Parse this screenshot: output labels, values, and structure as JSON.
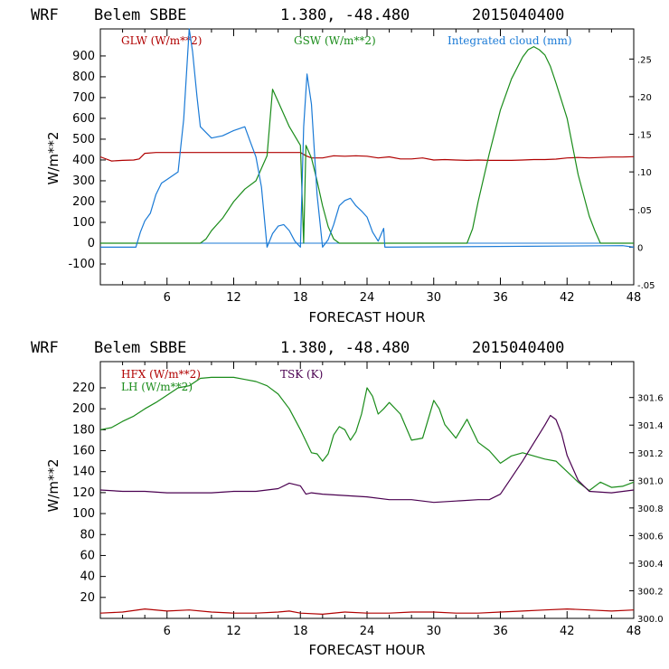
{
  "chart_data": [
    {
      "type": "line",
      "title": {
        "model": "WRF",
        "station": "Belem SBBE",
        "coords": "1.380, -48.480",
        "run": "2015040400"
      },
      "xlabel": "FORECAST HOUR",
      "ylabel": "W/m**2",
      "xlim": [
        0,
        48
      ],
      "ylim": [
        -200,
        1030
      ],
      "x_ticks": [
        "6",
        "12",
        "18",
        "24",
        "30",
        "36",
        "42",
        "48"
      ],
      "y_ticks": [
        "-100",
        "0",
        "100",
        "200",
        "300",
        "400",
        "500",
        "600",
        "700",
        "800",
        "900"
      ],
      "right_axis": {
        "lim": [
          -0.05,
          0.29
        ],
        "ticks": [
          ".25",
          ".20",
          ".15",
          ".10",
          ".05",
          "0",
          "-.05"
        ]
      },
      "series": [
        {
          "name": "GLW (W/m**2)",
          "color": "#b00000",
          "axis": "left",
          "x": [
            0,
            1,
            2,
            3,
            3.5,
            4,
            5,
            6,
            7,
            8,
            9,
            10,
            11,
            12,
            13,
            14,
            15,
            16,
            17,
            18,
            18.5,
            19,
            20,
            21,
            22,
            23,
            24,
            25,
            26,
            27,
            28,
            29,
            30,
            31,
            32,
            33,
            34,
            35,
            36,
            37,
            38,
            39,
            40,
            41,
            42,
            43,
            44,
            45,
            46,
            47,
            48
          ],
          "y": [
            415,
            395,
            398,
            400,
            405,
            432,
            436,
            436,
            436,
            436,
            436,
            436,
            436,
            436,
            436,
            436,
            436,
            436,
            436,
            436,
            420,
            410,
            410,
            420,
            418,
            420,
            418,
            410,
            415,
            405,
            405,
            410,
            400,
            402,
            400,
            398,
            400,
            398,
            398,
            398,
            400,
            402,
            402,
            404,
            410,
            412,
            410,
            412,
            414,
            414,
            416
          ]
        },
        {
          "name": "GSW (W/m**2)",
          "color": "#1a8c1a",
          "axis": "left",
          "x": [
            0,
            9,
            9.5,
            10,
            11,
            12,
            13,
            14,
            15,
            15.5,
            16,
            17,
            18,
            18.3,
            18.5,
            19,
            19.5,
            20,
            20.5,
            21,
            21.5,
            33,
            33.5,
            34,
            35,
            36,
            37,
            38,
            38.5,
            39,
            39.5,
            40,
            40.5,
            41,
            42,
            43,
            44,
            44.5,
            45,
            46,
            48
          ],
          "y": [
            0,
            0,
            20,
            60,
            120,
            200,
            260,
            300,
            420,
            740,
            680,
            560,
            470,
            0,
            470,
            410,
            300,
            180,
            80,
            20,
            0,
            0,
            70,
            200,
            430,
            640,
            790,
            895,
            930,
            945,
            930,
            905,
            850,
            770,
            600,
            330,
            130,
            60,
            0,
            0,
            0
          ]
        },
        {
          "name": "Integrated cloud (mm)",
          "color": "#1a7ad6",
          "axis": "right",
          "x": [
            0,
            3.2,
            3.6,
            4,
            4.5,
            5,
            5.5,
            6,
            7,
            7.5,
            8,
            8.3,
            8.7,
            9,
            10,
            11,
            12,
            13,
            13.5,
            14,
            14.5,
            15,
            15.5,
            16,
            16.5,
            17,
            17.5,
            18,
            18.3,
            18.6,
            19,
            19.5,
            20,
            20.5,
            21,
            21.5,
            22,
            22.5,
            23,
            23.5,
            24,
            24.5,
            25,
            25.5,
            25.6,
            47,
            48
          ],
          "y": [
            0,
            0,
            0.02,
            0.035,
            0.045,
            0.07,
            0.085,
            0.09,
            0.1,
            0.17,
            0.29,
            0.26,
            0.2,
            0.16,
            0.145,
            0.148,
            0.155,
            0.16,
            0.14,
            0.12,
            0.08,
            0.0,
            0.018,
            0.028,
            0.03,
            0.022,
            0.008,
            0.0,
            0.16,
            0.23,
            0.19,
            0.07,
            0.0,
            0.01,
            0.03,
            0.055,
            0.062,
            0.065,
            0.055,
            0.048,
            0.04,
            0.02,
            0.008,
            0.025,
            0.0,
            0.002,
            0.0
          ]
        }
      ]
    },
    {
      "type": "line",
      "title": {
        "model": "WRF",
        "station": "Belem SBBE",
        "coords": "1.380, -48.480",
        "run": "2015040400"
      },
      "xlabel": "FORECAST HOUR",
      "ylabel": "W/m**2",
      "xlim": [
        0,
        48
      ],
      "ylim": [
        0,
        245
      ],
      "x_ticks": [
        "6",
        "12",
        "18",
        "24",
        "30",
        "36",
        "42",
        "48"
      ],
      "y_ticks": [
        "20",
        "40",
        "60",
        "80",
        "100",
        "120",
        "140",
        "160",
        "180",
        "200",
        "220"
      ],
      "right_axis": {
        "lim": [
          300.0,
          301.86
        ],
        "ticks": [
          "301.6",
          "301.4",
          "301.2",
          "301.0",
          "300.8",
          "300.6",
          "300.4",
          "300.2",
          "300.0"
        ]
      },
      "series": [
        {
          "name": "HFX (W/m**2)",
          "color": "#b00000",
          "axis": "left",
          "x": [
            0,
            2,
            4,
            6,
            8,
            10,
            12,
            14,
            16,
            17,
            18,
            20,
            22,
            24,
            26,
            28,
            30,
            32,
            34,
            36,
            38,
            40,
            42,
            44,
            46,
            48
          ],
          "y": [
            5,
            6,
            9,
            7,
            8,
            6,
            5,
            5,
            6,
            7,
            5,
            4,
            6,
            5,
            5,
            6,
            6,
            5,
            5,
            6,
            7,
            8,
            9,
            8,
            7,
            8
          ]
        },
        {
          "name": "LH (W/m**2)",
          "color": "#1a8c1a",
          "axis": "left",
          "x": [
            0,
            1,
            2,
            3,
            4,
            5,
            6,
            7,
            8,
            9,
            10,
            11,
            12,
            13,
            14,
            15,
            16,
            17,
            18,
            19,
            19.5,
            20,
            20.5,
            21,
            21.5,
            22,
            22.5,
            23,
            23.5,
            24,
            24.5,
            25,
            25.5,
            26,
            27,
            28,
            29,
            30,
            30.5,
            31,
            32,
            33,
            34,
            35,
            36,
            37,
            38,
            39,
            40,
            41,
            42,
            43,
            44,
            45,
            46,
            47,
            48
          ],
          "y": [
            180,
            182,
            188,
            193,
            200,
            206,
            213,
            220,
            222,
            229,
            230,
            230,
            230,
            228,
            226,
            222,
            214,
            200,
            180,
            158,
            157,
            150,
            157,
            175,
            183,
            180,
            170,
            178,
            195,
            220,
            212,
            195,
            200,
            206,
            195,
            170,
            172,
            208,
            200,
            185,
            172,
            190,
            168,
            160,
            148,
            155,
            158,
            155,
            152,
            150,
            140,
            130,
            122,
            130,
            125,
            126,
            130
          ]
        },
        {
          "name": "TSK (K)",
          "color": "#4a0050",
          "axis": "right",
          "x": [
            0,
            2,
            4,
            6,
            8,
            10,
            12,
            14,
            16,
            17,
            18,
            18.5,
            19,
            20,
            22,
            24,
            26,
            28,
            30,
            32,
            34,
            35,
            36,
            37,
            38,
            39,
            40,
            40.5,
            41,
            41.5,
            42,
            43,
            44,
            46,
            48
          ],
          "y": [
            300.93,
            300.92,
            300.92,
            300.91,
            300.91,
            300.91,
            300.92,
            300.92,
            300.94,
            300.98,
            300.96,
            300.9,
            300.91,
            300.9,
            300.89,
            300.88,
            300.86,
            300.86,
            300.84,
            300.85,
            300.86,
            300.86,
            300.9,
            301.02,
            301.14,
            301.27,
            301.4,
            301.47,
            301.44,
            301.34,
            301.18,
            301.0,
            300.92,
            300.91,
            300.93
          ]
        }
      ]
    }
  ]
}
